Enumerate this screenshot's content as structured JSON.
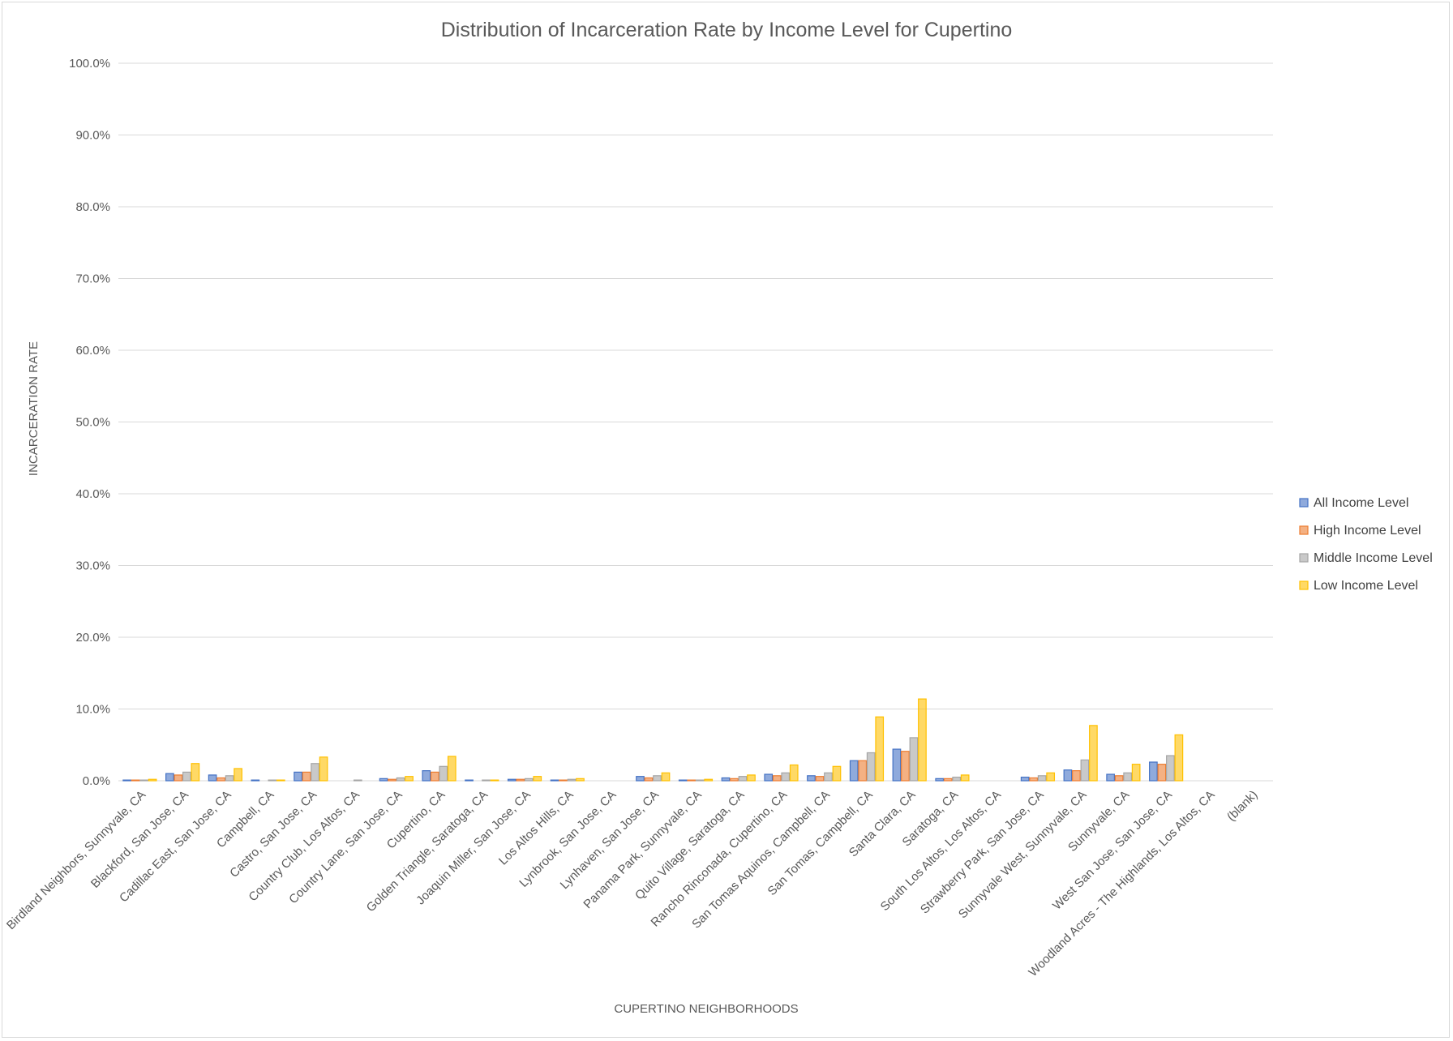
{
  "chart_data": {
    "type": "bar",
    "title": "Distribution  of Incarceration  Rate by Income Level for Cupertino",
    "xlabel": "CUPERTINO NEIGHBORHOODS",
    "ylabel": "INCARCERATION RATE",
    "ylim": [
      0,
      100
    ],
    "y_ticks": [
      "0.0%",
      "10.0%",
      "20.0%",
      "30.0%",
      "40.0%",
      "50.0%",
      "60.0%",
      "70.0%",
      "80.0%",
      "90.0%",
      "100.0%"
    ],
    "grid": true,
    "legend_position": "right",
    "categories": [
      "Birdland Neighbors, Sunnyvale, CA",
      "Blackford, San Jose, CA",
      "Cadillac East, San Jose, CA",
      "Campbell, CA",
      "Castro, San Jose, CA",
      "Country Club, Los Altos, CA",
      "Country Lane, San Jose, CA",
      "Cupertino, CA",
      "Golden Triangle, Saratoga, CA",
      "Joaquin Miller, San Jose, CA",
      "Los Altos Hills, CA",
      "Lynbrook, San Jose, CA",
      "Lynhaven, San Jose, CA",
      "Panama Park, Sunnyvale, CA",
      "Quito Village, Saratoga, CA",
      "Rancho Rinconada, Cupertino, CA",
      "San Tomas Aquinos, Campbell, CA",
      "San Tomas, Campbell, CA",
      "Santa Clara, CA",
      "Saratoga, CA",
      "South Los Altos, Los Altos, CA",
      "Strawberry Park, San Jose, CA",
      "Sunnyvale West, Sunnyvale, CA",
      "Sunnyvale, CA",
      "West San Jose, San Jose, CA",
      "Woodland Acres - The Highlands, Los Altos, CA",
      "(blank)"
    ],
    "series": [
      {
        "name": "All Income Level",
        "color": "#4472c4",
        "values": [
          0.1,
          1.0,
          0.8,
          0.1,
          1.2,
          0.0,
          0.3,
          1.4,
          0.1,
          0.2,
          0.1,
          0.0,
          0.6,
          0.1,
          0.4,
          0.9,
          0.7,
          2.8,
          4.4,
          0.3,
          0.0,
          0.5,
          1.5,
          0.9,
          2.6,
          0.0,
          0.0
        ]
      },
      {
        "name": "High Income Level",
        "color": "#ed7d31",
        "values": [
          0.1,
          0.8,
          0.4,
          0.0,
          1.2,
          0.0,
          0.2,
          1.2,
          0.0,
          0.2,
          0.1,
          0.0,
          0.4,
          0.1,
          0.3,
          0.7,
          0.6,
          2.8,
          4.1,
          0.3,
          0.0,
          0.4,
          1.4,
          0.7,
          2.3,
          0.0,
          0.0
        ]
      },
      {
        "name": "Middle Income Level",
        "color": "#a5a5a5",
        "values": [
          0.1,
          1.2,
          0.7,
          0.1,
          2.4,
          0.1,
          0.4,
          2.0,
          0.1,
          0.3,
          0.2,
          0.0,
          0.7,
          0.1,
          0.6,
          1.1,
          1.1,
          3.9,
          6.0,
          0.5,
          0.0,
          0.7,
          2.9,
          1.1,
          3.5,
          0.0,
          0.0
        ]
      },
      {
        "name": "Low Income Level",
        "color": "#ffc000",
        "values": [
          0.2,
          2.4,
          1.7,
          0.1,
          3.3,
          0.0,
          0.6,
          3.4,
          0.1,
          0.6,
          0.3,
          0.0,
          1.1,
          0.2,
          0.8,
          2.2,
          2.0,
          8.9,
          11.4,
          0.8,
          0.0,
          1.1,
          7.7,
          2.3,
          6.4,
          0.0,
          0.0
        ]
      }
    ]
  }
}
